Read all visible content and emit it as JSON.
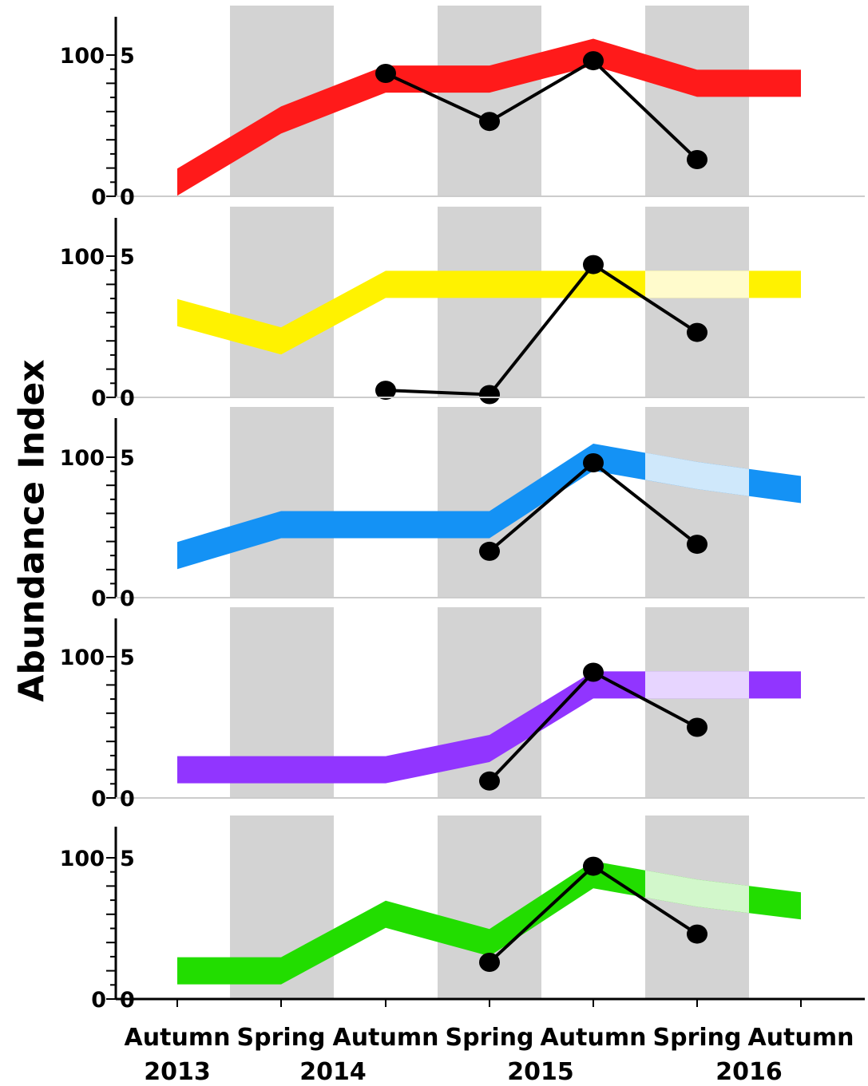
{
  "chart_data": {
    "type": "line",
    "ylabel": "Abundance Index",
    "categories": [
      "Autumn",
      "Spring",
      "Autumn",
      "Spring",
      "Autumn",
      "Spring",
      "Autumn"
    ],
    "years": [
      "2013",
      "2014",
      "2015",
      "2016"
    ],
    "shaded_seasons": [
      "Spring",
      "Spring",
      "Spring"
    ],
    "left_axis": {
      "ticks": [
        "0",
        "100"
      ],
      "ylim": [
        0,
        100
      ]
    },
    "right_axis": {
      "ticks": [
        "0",
        "5"
      ],
      "ylim": [
        0,
        5
      ]
    },
    "grid": false,
    "panels": [
      {
        "band_color": "#ff1a1a",
        "band_faded_color": null,
        "band_values": [
          10,
          54,
          83,
          83,
          102,
          80,
          80
        ],
        "point_values": [
          null,
          null,
          4.35,
          2.65,
          4.8,
          1.3,
          null
        ]
      },
      {
        "band_color": "#fff200",
        "band_faded_color": "#fffbcc",
        "band_values": [
          60,
          40,
          80,
          80,
          80,
          80,
          80
        ],
        "point_values": [
          null,
          null,
          0.25,
          0.1,
          4.7,
          2.3,
          null
        ]
      },
      {
        "band_color": "#1492f5",
        "band_faded_color": "#cfe8fb",
        "band_values": [
          30,
          52,
          52,
          52,
          100,
          87,
          77
        ],
        "point_values": [
          null,
          null,
          null,
          1.65,
          4.8,
          1.9,
          null
        ]
      },
      {
        "band_color": "#9135ff",
        "band_faded_color": "#e7d5ff",
        "band_values": [
          20,
          20,
          20,
          35,
          80,
          80,
          80
        ],
        "point_values": [
          null,
          null,
          null,
          0.6,
          4.45,
          2.5,
          null
        ]
      },
      {
        "band_color": "#22dd00",
        "band_faded_color": "#d2f7cb",
        "band_values": [
          20,
          20,
          60,
          40,
          88,
          75,
          66
        ],
        "point_values": [
          null,
          null,
          null,
          1.3,
          4.7,
          2.3,
          null
        ]
      }
    ]
  },
  "colors": {
    "shade": "#d3d3d3",
    "points": "#000000",
    "axis": "#000000"
  }
}
